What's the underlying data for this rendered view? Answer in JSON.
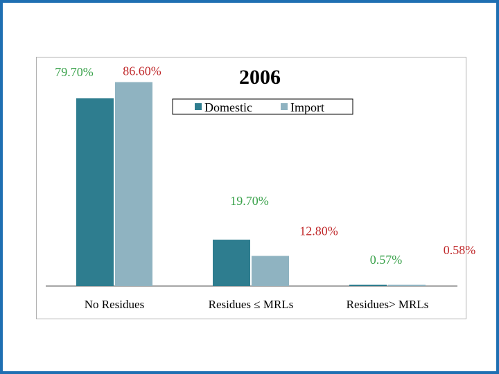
{
  "colors": {
    "frame_border": "#1f6fb2",
    "domestic_bar": "#2e7d8f",
    "import_bar": "#8fb3c1",
    "domestic_label": "#3aa24b",
    "import_label": "#c0292b"
  },
  "chart_data": {
    "type": "bar",
    "title": "2006",
    "categories": [
      "No Residues",
      "Residues ≤ MRLs",
      "Residues> MRLs"
    ],
    "series": [
      {
        "name": "Domestic",
        "values": [
          79.7,
          19.7,
          0.57
        ],
        "labels": [
          "79.70%",
          "19.70%",
          "0.57%"
        ]
      },
      {
        "name": "Import",
        "values": [
          86.6,
          12.8,
          0.58
        ],
        "labels": [
          "86.60%",
          "12.80%",
          "0.58%"
        ]
      }
    ],
    "xlabel": "",
    "ylabel": "",
    "ylim": [
      0,
      90
    ],
    "grid": false,
    "legend_position": "top-right"
  }
}
